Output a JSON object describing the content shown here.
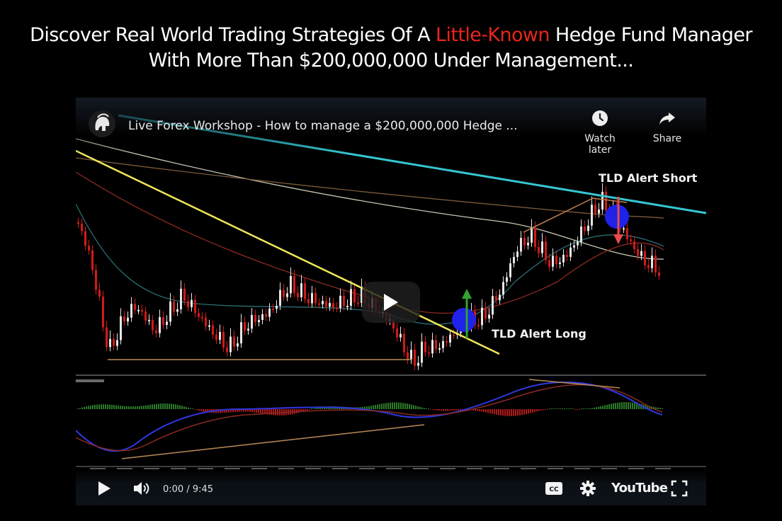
{
  "headline": {
    "line1_before": "Discover Real World Trading Strategies Of A ",
    "line1_highlight": "Little-Known",
    "line1_after": " Hedge Fund Manager",
    "line2": "With More Than $200,000,000 Under Management...",
    "highlight_color": "#e8261c"
  },
  "video": {
    "title": "Live Forex Workshop - How to manage a $200,000,000 Hedge ...",
    "channel_icon": "spartan-helmet-icon",
    "watch_later_label": "Watch later",
    "share_label": "Share",
    "time": "0:00 / 9:45",
    "brand": "YouTube"
  },
  "annotations": {
    "short": "TLD Alert Short",
    "long": "TLD Alert Long"
  },
  "colors": {
    "bull_candle": "#e6e6e6",
    "bear_candle": "#d11a1a",
    "resistance_line": "#35c6d3",
    "support_line": "#f0e85a",
    "alert_marker": "#1f22e8",
    "arrow_up": "#2fa52f",
    "arrow_down": "#e84a4a"
  },
  "icons": [
    "play-icon",
    "volume-icon",
    "captions-icon",
    "settings-gear-icon",
    "fullscreen-icon",
    "clock-icon",
    "share-arrow-icon"
  ]
}
